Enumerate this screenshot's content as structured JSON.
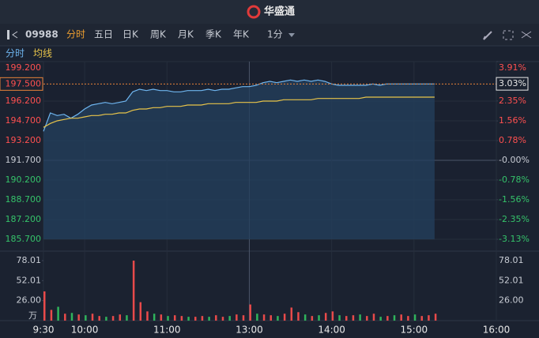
{
  "header": {
    "title": "华盛通"
  },
  "toolbar": {
    "code": "09988",
    "tabs": [
      "分时",
      "五日",
      "日K",
      "周K",
      "月K",
      "季K",
      "年K"
    ],
    "interval": "1分"
  },
  "chart_data": [
    {
      "type": "line",
      "x": [
        0,
        5,
        10,
        15,
        20,
        25,
        30,
        35,
        40,
        45,
        50,
        55,
        60,
        65,
        70,
        75,
        80,
        85,
        90,
        95,
        100,
        105,
        110,
        115,
        120,
        125,
        130,
        135,
        140,
        145,
        150,
        155,
        160,
        165,
        170,
        175,
        180,
        185,
        190,
        195,
        200,
        205,
        210,
        215,
        220,
        225,
        230,
        235,
        240,
        245,
        250,
        255,
        260,
        265,
        270,
        275,
        280,
        285
      ],
      "series": [
        {
          "name": "分时",
          "color": "#6fb6f0",
          "values": [
            193.9,
            195.3,
            195.1,
            195.2,
            194.9,
            195.2,
            195.6,
            195.9,
            196.0,
            196.1,
            196.0,
            196.1,
            196.2,
            196.9,
            197.1,
            197.0,
            197.1,
            197.0,
            197.0,
            196.9,
            196.9,
            197.0,
            197.0,
            197.0,
            197.1,
            197.0,
            197.1,
            197.1,
            197.2,
            197.3,
            197.3,
            197.4,
            197.6,
            197.7,
            197.6,
            197.7,
            197.8,
            197.7,
            197.8,
            197.7,
            197.8,
            197.7,
            197.5,
            197.4,
            197.4,
            197.4,
            197.4,
            197.4,
            197.5,
            197.4,
            197.5,
            197.5,
            197.5,
            197.5,
            197.5,
            197.5,
            197.5,
            197.5
          ]
        },
        {
          "name": "均线",
          "color": "#e8c44a",
          "values": [
            194.2,
            194.5,
            194.7,
            194.8,
            194.9,
            194.9,
            195.0,
            195.1,
            195.1,
            195.2,
            195.2,
            195.3,
            195.3,
            195.5,
            195.6,
            195.6,
            195.7,
            195.7,
            195.8,
            195.8,
            195.8,
            195.9,
            195.9,
            195.9,
            196.0,
            196.0,
            196.0,
            196.0,
            196.1,
            196.1,
            196.1,
            196.1,
            196.2,
            196.2,
            196.2,
            196.3,
            196.3,
            196.3,
            196.3,
            196.3,
            196.4,
            196.4,
            196.4,
            196.4,
            196.4,
            196.4,
            196.4,
            196.5,
            196.5,
            196.5,
            196.5,
            196.5,
            196.5,
            196.5,
            196.5,
            196.5,
            196.5,
            196.5
          ]
        }
      ],
      "xlim": [
        0,
        330
      ],
      "ylim": [
        185.7,
        199.2
      ],
      "yticks": [
        {
          "value": 199.2,
          "label": "199.200"
        },
        {
          "value": 196.2,
          "label": "196.200"
        },
        {
          "value": 194.7,
          "label": "194.700"
        },
        {
          "value": 193.2,
          "label": "193.200"
        },
        {
          "value": 191.7,
          "label": "191.700"
        },
        {
          "value": 190.2,
          "label": "190.200"
        },
        {
          "value": 188.7,
          "label": "188.700"
        },
        {
          "value": 187.2,
          "label": "187.200"
        },
        {
          "value": 185.7,
          "label": "185.700"
        }
      ],
      "y2lim": [
        -3.13,
        3.91
      ],
      "y2ticks": [
        {
          "value": 3.91,
          "label": "3.91%"
        },
        {
          "value": 2.35,
          "label": "2.35%"
        },
        {
          "value": 1.56,
          "label": "1.56%"
        },
        {
          "value": 0.78,
          "label": "0.78%"
        },
        {
          "value": 0,
          "label": "-0.00%"
        },
        {
          "value": -0.78,
          "label": "-0.78%"
        },
        {
          "value": -1.56,
          "label": "-1.56%"
        },
        {
          "value": -2.35,
          "label": "-2.35%"
        },
        {
          "value": -3.13,
          "label": "-3.13%"
        }
      ],
      "last_price": {
        "value": 197.5,
        "label": "197.500"
      },
      "last_change": {
        "value": 3.03,
        "label": "3.03%"
      }
    },
    {
      "type": "bar",
      "x": [
        0,
        5,
        10,
        15,
        20,
        25,
        30,
        35,
        40,
        45,
        50,
        55,
        60,
        65,
        70,
        75,
        80,
        85,
        90,
        95,
        100,
        105,
        110,
        115,
        120,
        125,
        130,
        135,
        140,
        145,
        150,
        155,
        160,
        165,
        170,
        175,
        180,
        185,
        190,
        195,
        200,
        205,
        210,
        215,
        220,
        225,
        230,
        235,
        240,
        245,
        250,
        255,
        260,
        265,
        270,
        275,
        280,
        285
      ],
      "values": [
        38,
        14,
        18,
        9,
        10,
        8,
        7,
        9,
        6,
        5,
        6,
        8,
        7,
        78,
        24,
        12,
        9,
        8,
        6,
        7,
        6,
        5,
        5,
        6,
        5,
        7,
        5,
        6,
        8,
        7,
        21,
        9,
        8,
        7,
        6,
        9,
        17,
        11,
        8,
        6,
        7,
        10,
        12,
        7,
        6,
        7,
        8,
        6,
        9,
        5,
        6,
        7,
        8,
        6,
        8,
        6,
        7,
        9
      ],
      "colors": [
        "#e84a4a",
        "#e84a4a",
        "#2fb35b",
        "#e84a4a",
        "#2fb35b",
        "#e84a4a",
        "#2fb35b",
        "#e84a4a",
        "#e84a4a",
        "#2fb35b",
        "#e84a4a",
        "#e84a4a",
        "#2fb35b",
        "#e84a4a",
        "#e84a4a",
        "#e84a4a",
        "#2fb35b",
        "#e84a4a",
        "#2fb35b",
        "#e84a4a",
        "#e84a4a",
        "#2fb35b",
        "#e84a4a",
        "#e84a4a",
        "#2fb35b",
        "#e84a4a",
        "#e84a4a",
        "#2fb35b",
        "#e84a4a",
        "#e84a4a",
        "#e84a4a",
        "#2fb35b",
        "#e84a4a",
        "#e84a4a",
        "#2fb35b",
        "#e84a4a",
        "#e84a4a",
        "#e84a4a",
        "#2fb35b",
        "#e84a4a",
        "#2fb35b",
        "#e84a4a",
        "#e84a4a",
        "#2fb35b",
        "#e84a4a",
        "#e84a4a",
        "#2fb35b",
        "#e84a4a",
        "#e84a4a",
        "#2fb35b",
        "#e84a4a",
        "#2fb35b",
        "#e84a4a",
        "#e84a4a",
        "#2fb35b",
        "#e84a4a",
        "#e84a4a",
        "#e84a4a"
      ],
      "unit": "万",
      "xlim": [
        0,
        330
      ],
      "xticks": [
        {
          "value": 0,
          "label": "9:30"
        },
        {
          "value": 30,
          "label": "10:00"
        },
        {
          "value": 90,
          "label": "11:00"
        },
        {
          "value": 150,
          "label": "13:00"
        },
        {
          "value": 210,
          "label": "14:00"
        },
        {
          "value": 270,
          "label": "15:00"
        },
        {
          "value": 330,
          "label": "16:00"
        }
      ],
      "ylim": [
        0,
        78.01
      ],
      "yticks": [
        78.01,
        52.01,
        {
          "value": 26,
          "label": "26.00"
        }
      ]
    }
  ]
}
